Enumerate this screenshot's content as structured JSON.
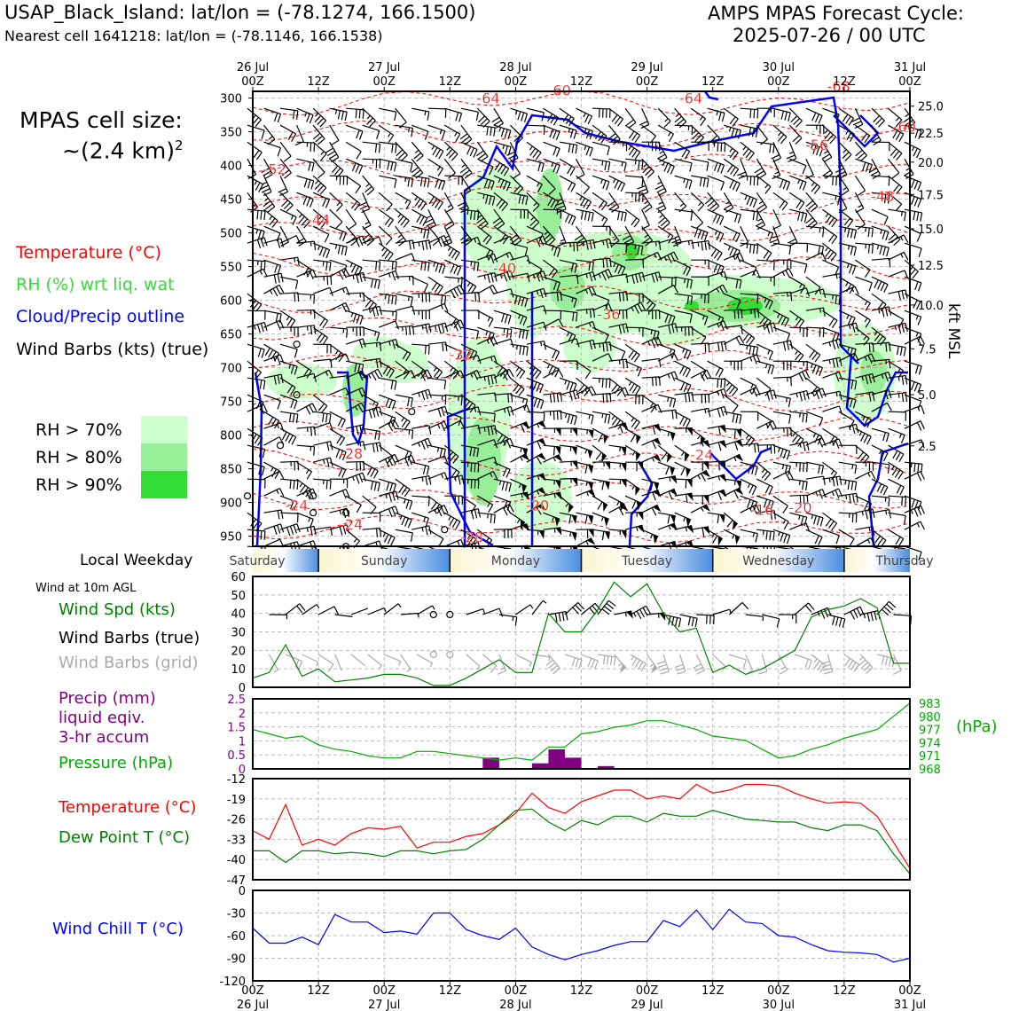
{
  "header": {
    "station": "USAP_Black_Island: lat/lon = (-78.1274, 166.1500)",
    "nearest_cell": "Nearest cell 1641218: lat/lon = (-78.1146, 166.1538)",
    "cycle_title": "AMPS MPAS Forecast Cycle:",
    "cycle_time": "2025-07-26 / 00 UTC"
  },
  "cell_size": {
    "line1": "MPAS cell size:",
    "line2_prefix": "~(2.4 km)",
    "line2_sup": "2"
  },
  "legend": {
    "temperature": "Temperature (°C)",
    "rh": "RH (%) wrt liq. wat",
    "cloud": "Cloud/Precip outline",
    "barbs": "Wind Barbs (kts) (true)",
    "rh70": "RH > 70%",
    "rh80": "RH > 80%",
    "rh90": "RH > 90%"
  },
  "colors": {
    "temperature": "#ff0000",
    "rh_label": "#33cc33",
    "cloud": "#0000ff",
    "rh70": "#ccffcc",
    "rh80": "#99ee99",
    "rh90": "#33dd33",
    "precip": "#800080",
    "pressure": "#00aa00",
    "dewpoint": "#008000",
    "windchill": "#0000ff",
    "wind_speed": "#008000",
    "grid_barb": "#aaaaaa"
  },
  "time_axis": {
    "top_labels": [
      [
        "26 Jul",
        "00Z"
      ],
      [
        "",
        "12Z"
      ],
      [
        "27 Jul",
        "00Z"
      ],
      [
        "",
        "12Z"
      ],
      [
        "28 Jul",
        "00Z"
      ],
      [
        "",
        "12Z"
      ],
      [
        "29 Jul",
        "00Z"
      ],
      [
        "",
        "12Z"
      ],
      [
        "30 Jul",
        "00Z"
      ],
      [
        "",
        "12Z"
      ],
      [
        "31 Jul",
        "00Z"
      ]
    ],
    "bottom_labels": [
      [
        "00Z",
        "26 Jul"
      ],
      [
        "12Z",
        ""
      ],
      [
        "00Z",
        "27 Jul"
      ],
      [
        "12Z",
        ""
      ],
      [
        "00Z",
        "28 Jul"
      ],
      [
        "12Z",
        ""
      ],
      [
        "00Z",
        "29 Jul"
      ],
      [
        "12Z",
        ""
      ],
      [
        "00Z",
        "30 Jul"
      ],
      [
        "12Z",
        ""
      ],
      [
        "00Z",
        "31 Jul"
      ]
    ]
  },
  "weekday": {
    "label": "Local Weekday",
    "days": [
      "Saturday",
      "Sunday",
      "Monday",
      "Tuesday",
      "Wednesday",
      "Thursday"
    ]
  },
  "wind10m": {
    "title": "Wind at 10m AGL",
    "spd_label": "Wind Spd (kts)",
    "barbs_true": "Wind Barbs (true)",
    "barbs_grid": "Wind Barbs (grid)"
  },
  "precip_panel": {
    "precip_l1": "Precip (mm)",
    "precip_l2": "liquid eqiv.",
    "precip_l3": "3-hr accum",
    "pressure_label": "Pressure (hPa)",
    "unit_right": "(hPa)"
  },
  "temp_panel": {
    "temp_label": "Temperature (°C)",
    "dew_label": "Dew Point T (°C)"
  },
  "windchill_panel": {
    "label": "Wind Chill T (°C)"
  },
  "chart_data": [
    {
      "type": "heatmap",
      "name": "time-height cross section",
      "x_range_hours": [
        0,
        120
      ],
      "y_label_right": "kft MSL",
      "pressure_ticks": [
        300,
        350,
        400,
        450,
        500,
        550,
        600,
        650,
        700,
        750,
        800,
        850,
        900,
        950
      ],
      "kft_ticks": [
        {
          "label": "25.0",
          "p": 312
        },
        {
          "label": "22.5",
          "p": 352
        },
        {
          "label": "20.0",
          "p": 395
        },
        {
          "label": "17.5",
          "p": 443
        },
        {
          "label": "15.0",
          "p": 494
        },
        {
          "label": "12.5",
          "p": 548
        },
        {
          "label": "10.0",
          "p": 607
        },
        {
          "label": "7.5",
          "p": 672
        },
        {
          "label": "5.0",
          "p": 740
        },
        {
          "label": "2.5",
          "p": 816
        }
      ],
      "temperature_labels": [
        {
          "text": "-64",
          "t": 43,
          "p": 308
        },
        {
          "text": "-60",
          "t": 56,
          "p": 296
        },
        {
          "text": "-64",
          "t": 80,
          "p": 308
        },
        {
          "text": "-68",
          "t": 107,
          "p": 290
        },
        {
          "text": "-60",
          "t": 119,
          "p": 350
        },
        {
          "text": "-56",
          "t": 103,
          "p": 377
        },
        {
          "text": "-52",
          "t": 4,
          "p": 413
        },
        {
          "text": "-48",
          "t": 115,
          "p": 453
        },
        {
          "text": "-44",
          "t": 12,
          "p": 488
        },
        {
          "text": "-40",
          "t": 46,
          "p": 560
        },
        {
          "text": "-36",
          "t": 65,
          "p": 628
        },
        {
          "text": "-32",
          "t": 38,
          "p": 688
        },
        {
          "text": "-28",
          "t": 18,
          "p": 835
        },
        {
          "text": "-24",
          "t": 82,
          "p": 837
        },
        {
          "text": "-24",
          "t": 8,
          "p": 912
        },
        {
          "text": "-24",
          "t": 18,
          "p": 940
        },
        {
          "text": "-20",
          "t": 52,
          "p": 912
        },
        {
          "text": "-16",
          "t": 93,
          "p": 918
        },
        {
          "text": "-20",
          "t": 100,
          "p": 915
        },
        {
          "text": "-28",
          "t": 40,
          "p": 959
        }
      ]
    },
    {
      "type": "line",
      "name": "10m wind speed",
      "ylim": [
        0,
        60
      ],
      "yticks": [
        0,
        10,
        20,
        30,
        40,
        50,
        60
      ],
      "x_hours": [
        0,
        3,
        6,
        9,
        12,
        15,
        18,
        21,
        24,
        27,
        30,
        33,
        36,
        39,
        42,
        45,
        48,
        51,
        54,
        57,
        60,
        63,
        66,
        69,
        72,
        75,
        78,
        81,
        84,
        87,
        90,
        93,
        96,
        99,
        102,
        105,
        108,
        111,
        114,
        117,
        120
      ],
      "values": [
        5,
        8,
        23,
        6,
        10,
        3,
        4,
        5,
        7,
        7,
        5,
        1,
        1,
        5,
        10,
        15,
        8,
        8,
        40,
        30,
        30,
        42,
        57,
        49,
        56,
        40,
        30,
        32,
        8,
        12,
        7,
        10,
        15,
        20,
        38,
        42,
        44,
        48,
        43,
        13,
        13
      ]
    },
    {
      "type": "bar",
      "name": "precipitation",
      "ylim": [
        0,
        2.5
      ],
      "yticks": [
        0,
        0.5,
        1.0,
        1.5,
        2.0,
        2.5
      ],
      "bars": [
        {
          "start_hour": 42,
          "end_hour": 45,
          "value": 0.4
        },
        {
          "start_hour": 51,
          "end_hour": 54,
          "value": 0.2
        },
        {
          "start_hour": 54,
          "end_hour": 57,
          "value": 0.7
        },
        {
          "start_hour": 57,
          "end_hour": 60,
          "value": 0.4
        },
        {
          "start_hour": 63,
          "end_hour": 66,
          "value": 0.1
        }
      ]
    },
    {
      "type": "line",
      "name": "pressure",
      "ylim": [
        968,
        984
      ],
      "yticks": [
        968,
        971,
        974,
        977,
        980,
        983
      ],
      "x_hours": [
        0,
        3,
        6,
        9,
        12,
        15,
        18,
        21,
        24,
        27,
        30,
        33,
        36,
        39,
        42,
        45,
        48,
        51,
        54,
        57,
        60,
        63,
        66,
        69,
        72,
        75,
        78,
        81,
        84,
        87,
        90,
        93,
        96,
        99,
        102,
        105,
        108,
        111,
        114,
        117,
        120
      ],
      "values": [
        977,
        976,
        975,
        975.5,
        973.5,
        972.5,
        972,
        971,
        970.5,
        970.5,
        972,
        972,
        971.5,
        971,
        970.5,
        970,
        970.5,
        970,
        973,
        973,
        976,
        976.5,
        977.5,
        978,
        979,
        979,
        978,
        977,
        975.5,
        975,
        974.5,
        972.5,
        970.5,
        971,
        972.5,
        973.5,
        975,
        976,
        977,
        980,
        983
      ]
    },
    {
      "type": "line",
      "name": "temperature and dew point",
      "ylim": [
        -47,
        -12
      ],
      "yticks": [
        -12,
        -19,
        -26,
        -33,
        -40,
        -47
      ],
      "x_hours": [
        0,
        3,
        6,
        9,
        12,
        15,
        18,
        21,
        24,
        27,
        30,
        33,
        36,
        39,
        42,
        45,
        48,
        51,
        54,
        57,
        60,
        63,
        66,
        69,
        72,
        75,
        78,
        81,
        84,
        87,
        90,
        93,
        96,
        99,
        102,
        105,
        108,
        111,
        114,
        117,
        120
      ],
      "series": [
        {
          "name": "Temperature",
          "values": [
            -30,
            -33,
            -21,
            -35,
            -33,
            -35,
            -31,
            -29,
            -29.5,
            -28.5,
            -36,
            -34,
            -34,
            -32,
            -31,
            -28,
            -24,
            -17,
            -22,
            -24,
            -20,
            -18,
            -16,
            -16,
            -19,
            -18,
            -19,
            -14,
            -17,
            -16,
            -14,
            -14,
            -14.5,
            -17,
            -19,
            -20.5,
            -20,
            -20.5,
            -25,
            -34,
            -43
          ]
        },
        {
          "name": "Dew Point",
          "values": [
            -37,
            -37,
            -41,
            -37,
            -37,
            -38,
            -37.5,
            -38,
            -39,
            -37,
            -37,
            -38,
            -37,
            -36.5,
            -33,
            -28,
            -23,
            -22.5,
            -27,
            -30,
            -26.5,
            -28,
            -25,
            -25,
            -27,
            -24,
            -25,
            -25,
            -23,
            -24.5,
            -26,
            -26.5,
            -27,
            -27,
            -29,
            -30,
            -28,
            -28,
            -30,
            -38,
            -45
          ]
        }
      ]
    },
    {
      "type": "line",
      "name": "wind chill",
      "ylim": [
        -120,
        0
      ],
      "yticks": [
        0,
        -30,
        -60,
        -90,
        -120
      ],
      "x_hours": [
        0,
        3,
        6,
        9,
        12,
        15,
        18,
        21,
        24,
        27,
        30,
        33,
        36,
        39,
        42,
        45,
        48,
        51,
        54,
        57,
        60,
        63,
        66,
        69,
        72,
        75,
        78,
        81,
        84,
        87,
        90,
        93,
        96,
        99,
        102,
        105,
        108,
        111,
        114,
        117,
        120
      ],
      "values": [
        -50,
        -70,
        -70,
        -62,
        -72,
        -32,
        -42,
        -42,
        -56,
        -54,
        -58,
        -30,
        -30,
        -52,
        -60,
        -65,
        -50,
        -75,
        -85,
        -92,
        -85,
        -80,
        -73,
        -68,
        -68,
        -40,
        -48,
        -26,
        -52,
        -25,
        -42,
        -44,
        -60,
        -62,
        -72,
        -80,
        -82,
        -83,
        -85,
        -95,
        -90
      ]
    }
  ]
}
